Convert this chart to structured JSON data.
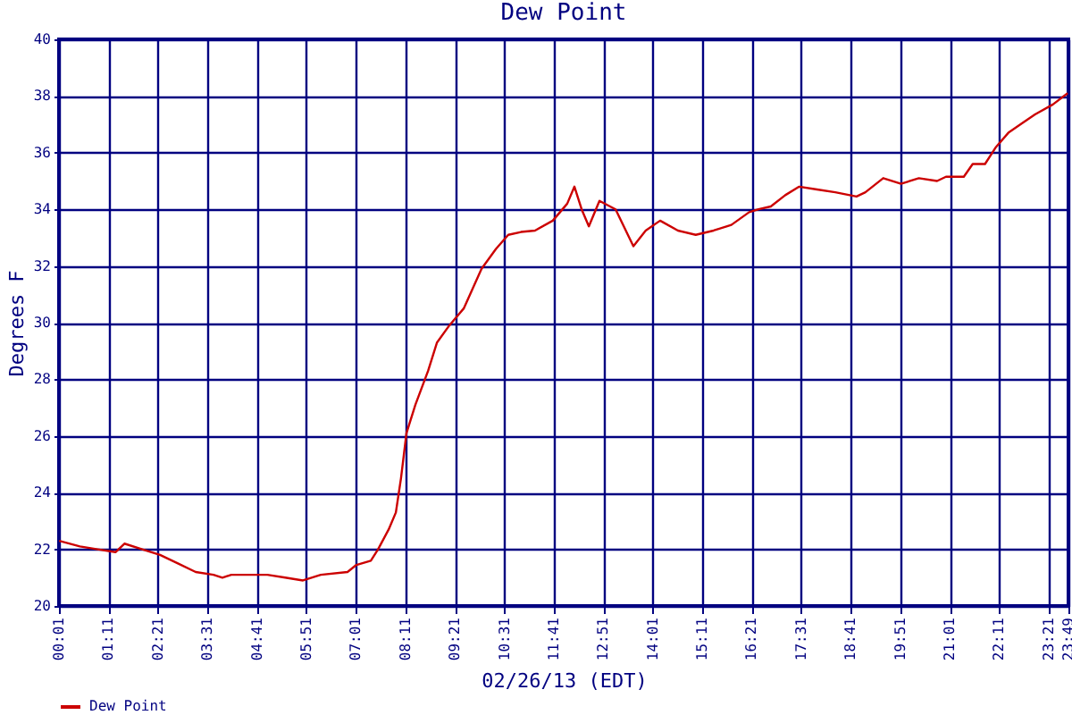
{
  "chart_data": {
    "type": "line",
    "title": "Dew Point",
    "xlabel": "02/26/13 (EDT)",
    "ylabel": "Degrees F",
    "x": [
      0.02,
      0.51,
      0.93,
      1.35,
      1.56,
      1.98,
      2.4,
      2.82,
      3.24,
      3.66,
      3.87,
      4.08,
      4.93,
      5.35,
      5.77,
      6.19,
      6.82,
      7.03,
      7.37,
      7.54,
      7.79,
      7.96,
      8.08,
      8.21,
      8.42,
      8.72,
      8.93,
      9.22,
      9.56,
      9.77,
      9.98,
      10.32,
      10.61,
      10.91,
      11.24,
      11.66,
      12.0,
      12.17,
      12.34,
      12.51,
      12.76,
      13.14,
      13.43,
      13.56,
      13.85,
      14.19,
      14.61,
      15.03,
      15.45,
      15.87,
      16.29,
      16.51,
      16.8,
      17.14,
      17.47,
      17.89,
      18.32,
      18.82,
      19.03,
      19.45,
      19.87,
      20.29,
      20.72,
      20.93,
      21.35,
      21.56,
      21.85,
      22.11,
      22.4,
      22.69,
      23.03,
      23.45,
      23.8
    ],
    "series": [
      {
        "name": "Dew Point",
        "color": "#cc0000",
        "values": [
          22.3,
          22.1,
          22.0,
          21.9,
          22.2,
          22.0,
          21.8,
          21.5,
          21.2,
          21.1,
          21.0,
          21.1,
          21.1,
          21.0,
          20.9,
          21.1,
          21.2,
          21.45,
          21.6,
          22.0,
          22.7,
          23.3,
          24.5,
          26.1,
          27.1,
          28.3,
          29.3,
          29.9,
          30.5,
          31.2,
          31.9,
          32.6,
          33.1,
          33.2,
          33.25,
          33.6,
          34.2,
          34.8,
          34.0,
          33.4,
          34.3,
          34.0,
          33.1,
          32.7,
          33.25,
          33.6,
          33.25,
          33.1,
          33.25,
          33.45,
          33.9,
          34.0,
          34.1,
          34.5,
          34.8,
          34.7,
          34.6,
          34.45,
          34.6,
          35.1,
          34.9,
          35.1,
          35.0,
          35.15,
          35.15,
          35.6,
          35.6,
          36.2,
          36.7,
          37.0,
          37.35,
          37.7,
          38.1
        ]
      }
    ],
    "xlim": [
      0.0167,
      23.8167
    ],
    "xticks": [
      {
        "value": 0.0167,
        "label": "00:01"
      },
      {
        "value": 1.1833,
        "label": "01:11"
      },
      {
        "value": 2.35,
        "label": "02:21"
      },
      {
        "value": 3.5167,
        "label": "03:31"
      },
      {
        "value": 4.6833,
        "label": "04:41"
      },
      {
        "value": 5.85,
        "label": "05:51"
      },
      {
        "value": 7.0167,
        "label": "07:01"
      },
      {
        "value": 8.1833,
        "label": "08:11"
      },
      {
        "value": 9.35,
        "label": "09:21"
      },
      {
        "value": 10.5167,
        "label": "10:31"
      },
      {
        "value": 11.6833,
        "label": "11:41"
      },
      {
        "value": 12.85,
        "label": "12:51"
      },
      {
        "value": 14.0167,
        "label": "14:01"
      },
      {
        "value": 15.1833,
        "label": "15:11"
      },
      {
        "value": 16.35,
        "label": "16:21"
      },
      {
        "value": 17.5167,
        "label": "17:31"
      },
      {
        "value": 18.6833,
        "label": "18:41"
      },
      {
        "value": 19.85,
        "label": "19:51"
      },
      {
        "value": 21.0167,
        "label": "21:01"
      },
      {
        "value": 22.1833,
        "label": "22:11"
      },
      {
        "value": 23.35,
        "label": "23:21"
      },
      {
        "value": 23.8167,
        "label": "23:49"
      }
    ],
    "ylim": [
      20,
      40
    ],
    "yticks": [
      20,
      22,
      24,
      26,
      28,
      30,
      32,
      34,
      36,
      38,
      40
    ],
    "grid": true,
    "legend": "bottom",
    "marker": "none",
    "line_style": "solid"
  }
}
